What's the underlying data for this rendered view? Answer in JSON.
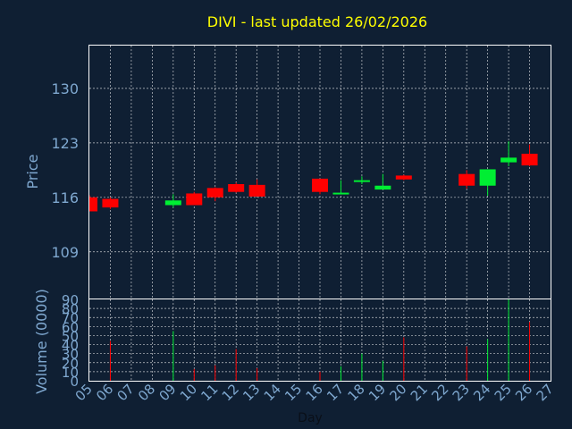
{
  "chart_data": {
    "type": "candlestick",
    "title": "DIVI - last updated 26/02/2026",
    "xlabel": "Day",
    "ylabel": "Price",
    "volume_label": "Volume (0000)",
    "price_ticks": [
      109,
      116,
      123,
      130
    ],
    "price_ylim": [
      103,
      135.5
    ],
    "volume_ticks": [
      0,
      10,
      20,
      30,
      40,
      50,
      60,
      70,
      80,
      90
    ],
    "volume_ylim": [
      0,
      90
    ],
    "x_ticks": [
      "05",
      "06",
      "07",
      "08",
      "09",
      "10",
      "11",
      "12",
      "13",
      "14",
      "15",
      "16",
      "17",
      "18",
      "19",
      "20",
      "21",
      "22",
      "23",
      "24",
      "25",
      "26",
      "27"
    ],
    "grid": true,
    "candles": [
      {
        "day": "05",
        "open": 116.0,
        "close": 114.2,
        "high": 116.3,
        "low": 114.2
      },
      {
        "day": "06",
        "open": 115.8,
        "close": 114.7,
        "high": 116.0,
        "low": 114.5
      },
      {
        "day": "09",
        "open": 115.0,
        "close": 115.6,
        "high": 116.4,
        "low": 114.7
      },
      {
        "day": "10",
        "open": 116.5,
        "close": 115.0,
        "high": 116.7,
        "low": 115.0
      },
      {
        "day": "11",
        "open": 117.2,
        "close": 116.0,
        "high": 117.3,
        "low": 115.5
      },
      {
        "day": "12",
        "open": 117.7,
        "close": 116.7,
        "high": 117.9,
        "low": 116.6
      },
      {
        "day": "13",
        "open": 117.6,
        "close": 116.1,
        "high": 118.3,
        "low": 116.1
      },
      {
        "day": "16",
        "open": 118.4,
        "close": 116.7,
        "high": 118.4,
        "low": 116.4
      },
      {
        "day": "17",
        "open": 116.6,
        "close": 116.6,
        "high": 118.2,
        "low": 116.5
      },
      {
        "day": "18",
        "open": 118.0,
        "close": 118.2,
        "high": 118.7,
        "low": 117.7
      },
      {
        "day": "19",
        "open": 117.0,
        "close": 117.5,
        "high": 119.0,
        "low": 117.0
      },
      {
        "day": "20",
        "open": 118.8,
        "close": 118.3,
        "high": 118.9,
        "low": 118.2
      },
      {
        "day": "23",
        "open": 119.0,
        "close": 117.5,
        "high": 119.5,
        "low": 117.1
      },
      {
        "day": "24",
        "open": 117.5,
        "close": 119.6,
        "high": 119.6,
        "low": 116.2
      },
      {
        "day": "25",
        "open": 120.5,
        "close": 121.1,
        "high": 123.2,
        "low": 120.0
      },
      {
        "day": "26",
        "open": 121.6,
        "close": 120.1,
        "high": 122.8,
        "low": 120.0
      }
    ],
    "volumes": [
      {
        "day": "05",
        "value": 0,
        "direction": "down"
      },
      {
        "day": "06",
        "value": 44,
        "direction": "down"
      },
      {
        "day": "09",
        "value": 55,
        "direction": "up"
      },
      {
        "day": "10",
        "value": 13,
        "direction": "down"
      },
      {
        "day": "11",
        "value": 17,
        "direction": "down"
      },
      {
        "day": "12",
        "value": 35,
        "direction": "down"
      },
      {
        "day": "13",
        "value": 14,
        "direction": "down"
      },
      {
        "day": "16",
        "value": 10,
        "direction": "down"
      },
      {
        "day": "17",
        "value": 16,
        "direction": "up"
      },
      {
        "day": "18",
        "value": 30,
        "direction": "up"
      },
      {
        "day": "19",
        "value": 22,
        "direction": "up"
      },
      {
        "day": "20",
        "value": 48,
        "direction": "down"
      },
      {
        "day": "23",
        "value": 38,
        "direction": "down"
      },
      {
        "day": "24",
        "value": 46,
        "direction": "up"
      },
      {
        "day": "25",
        "value": 90,
        "direction": "up"
      },
      {
        "day": "26",
        "value": 65,
        "direction": "down"
      }
    ],
    "colors": {
      "background": "#0f1f33",
      "title": "#ffff00",
      "axis_text": "#7fa8d0",
      "frame": "#ffffff",
      "grid": "#ffffff",
      "up": "#00ee33",
      "down": "#ff0000"
    }
  }
}
